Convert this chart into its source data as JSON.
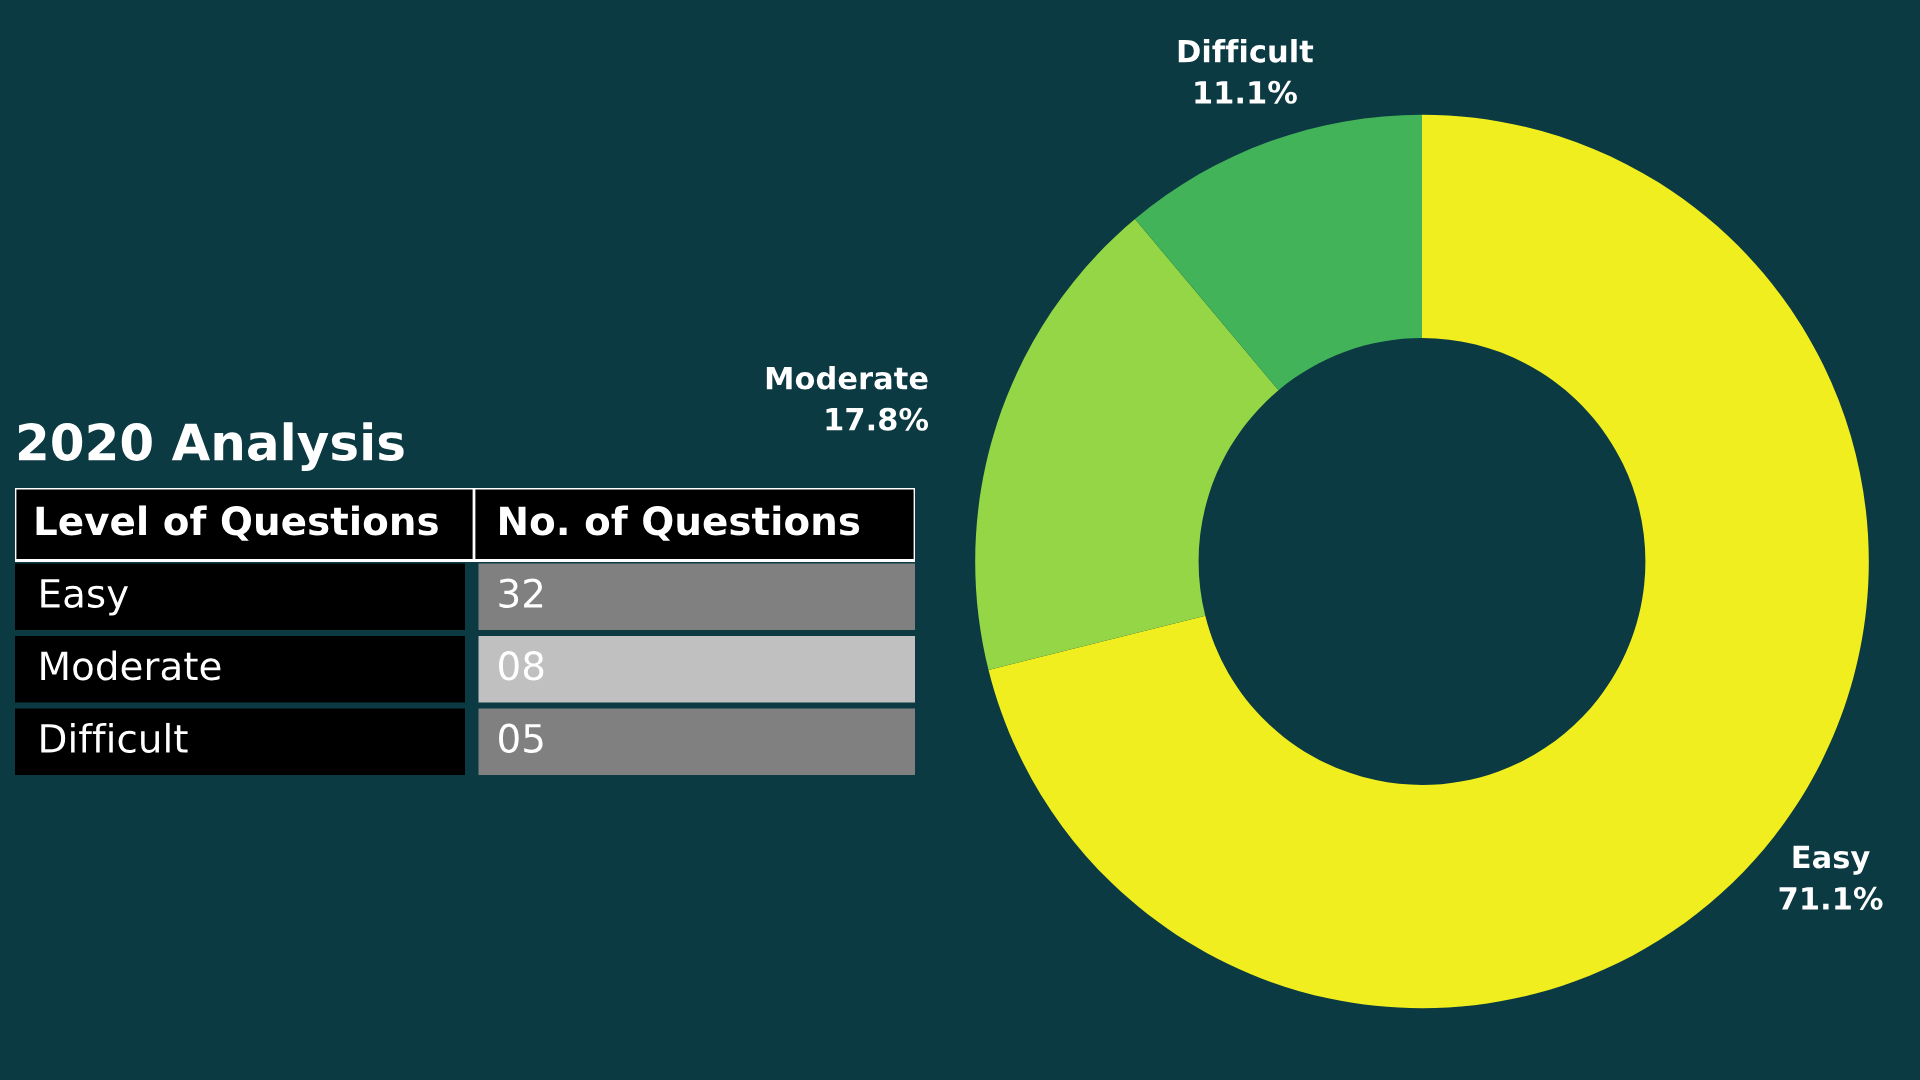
{
  "chart_data": [
    {
      "type": "other",
      "title": "2020 Analysis",
      "annotations": [
        "Level of Questions",
        "No. of Questions"
      ],
      "categories": [
        "Easy",
        "Moderate",
        "Difficult"
      ],
      "values": [
        32,
        8,
        5
      ],
      "value_labels": [
        "32",
        "08",
        "05"
      ]
    },
    {
      "type": "donut",
      "categories": [
        "Easy",
        "Moderate",
        "Difficult"
      ],
      "values": [
        71.1,
        17.8,
        11.1
      ],
      "value_labels": [
        "71.1%",
        "17.8%",
        "11.1%"
      ],
      "colors": [
        "#f0ee1f",
        "#94d645",
        "#43b35a"
      ]
    }
  ]
}
